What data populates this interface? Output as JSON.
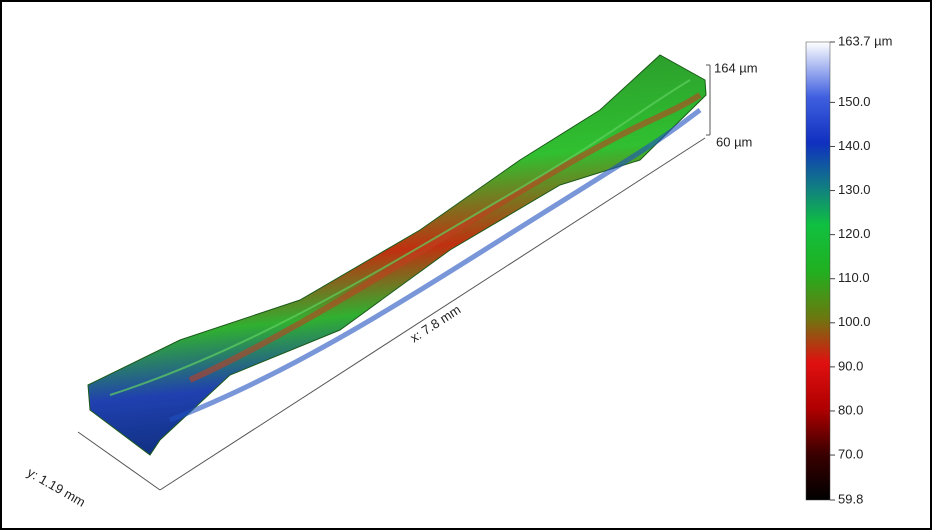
{
  "surface": {
    "z_axis": {
      "top_label": "164 µm",
      "bottom_label": "60 µm"
    },
    "x_axis_label": "x: 7.8 mm",
    "y_axis_label": "y: 1.19 mm",
    "colorbar": {
      "range": [
        59.8,
        163.7
      ],
      "ticks": [
        {
          "value": 163.7,
          "label": "163.7 µm"
        },
        {
          "value": 150,
          "label": "150.0"
        },
        {
          "value": 140,
          "label": "140.0"
        },
        {
          "value": 130,
          "label": "130.0"
        },
        {
          "value": 120,
          "label": "120.0"
        },
        {
          "value": 110,
          "label": "110.0"
        },
        {
          "value": 100,
          "label": "100.0"
        },
        {
          "value": 90,
          "label": "90.0"
        },
        {
          "value": 80,
          "label": "80.0"
        },
        {
          "value": 70,
          "label": "70.0"
        },
        {
          "value": 59.8,
          "label": "59.8"
        }
      ]
    }
  }
}
